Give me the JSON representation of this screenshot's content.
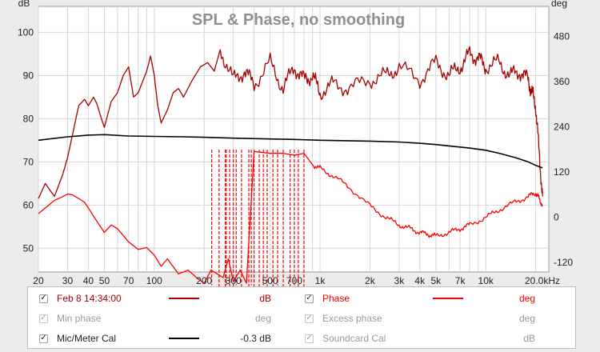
{
  "chart_data": {
    "type": "line",
    "title": "SPL & Phase, no smoothing",
    "xscale": "log",
    "xlim": [
      20,
      24000
    ],
    "x_ticks": [
      {
        "value": 20,
        "label": "20"
      },
      {
        "value": 30,
        "label": "30"
      },
      {
        "value": 40,
        "label": "40"
      },
      {
        "value": 50,
        "label": "50"
      },
      {
        "value": 70,
        "label": "70"
      },
      {
        "value": 100,
        "label": "100"
      },
      {
        "value": 200,
        "label": "200"
      },
      {
        "value": 300,
        "label": "300"
      },
      {
        "value": 500,
        "label": "500"
      },
      {
        "value": 700,
        "label": "700"
      },
      {
        "value": 1000,
        "label": "1k"
      },
      {
        "value": 2000,
        "label": "2k"
      },
      {
        "value": 3000,
        "label": "3k"
      },
      {
        "value": 4000,
        "label": "4k"
      },
      {
        "value": 5000,
        "label": "5k"
      },
      {
        "value": 7000,
        "label": "7k"
      },
      {
        "value": 10000,
        "label": "10k"
      },
      {
        "value": 20000,
        "label": "20.0kHz"
      }
    ],
    "y_left": {
      "label": "dB",
      "min": 44.5,
      "max": 106,
      "ticks": [
        50,
        60,
        70,
        80,
        90,
        100
      ]
    },
    "y_right": {
      "label": "deg",
      "min": -145,
      "max": 560,
      "ticks": [
        -120,
        0,
        120,
        240,
        360,
        480
      ]
    },
    "series": [
      {
        "name": "SPL (Feb 8 14:34:00)",
        "axis": "left",
        "color": "#a50000",
        "x": [
          20,
          22,
          25,
          28,
          30,
          32,
          35,
          38,
          40,
          43,
          45,
          48,
          50,
          55,
          60,
          65,
          70,
          75,
          80,
          90,
          95,
          100,
          105,
          110,
          120,
          130,
          140,
          150,
          170,
          190,
          210,
          230,
          250,
          300,
          350,
          400,
          500,
          600,
          700,
          800,
          900,
          1000,
          1200,
          1500,
          2000,
          2500,
          3000,
          4000,
          5000,
          6000,
          7000,
          8000,
          9000,
          10000,
          12000,
          14000,
          16000,
          18000,
          19000,
          20000,
          21000,
          22000
        ],
        "values": [
          61.5,
          65,
          62,
          67,
          71,
          76,
          83,
          84.5,
          83,
          85,
          83.5,
          80,
          78,
          84,
          86,
          90,
          92,
          85,
          86,
          91,
          94.5,
          90,
          83,
          79,
          82,
          86,
          87,
          85,
          89,
          92,
          93,
          91,
          96,
          89,
          91,
          88,
          93,
          87,
          92,
          89,
          90,
          86,
          88,
          87,
          89,
          90,
          92,
          89,
          93,
          90,
          92,
          95,
          94,
          92,
          93,
          90,
          91,
          89,
          86,
          83,
          72,
          62
        ]
      },
      {
        "name": "Phase",
        "axis": "right",
        "color": "#ff0000",
        "x": [
          20,
          22,
          25,
          28,
          30,
          32,
          35,
          38,
          40,
          45,
          50,
          55,
          60,
          70,
          80,
          90,
          100,
          110,
          120,
          140,
          160,
          180,
          200,
          220,
          240,
          260,
          280,
          300,
          330,
          360,
          400,
          500,
          600,
          700,
          800,
          900,
          1000,
          1200,
          1500,
          2000,
          2500,
          3000,
          3500,
          4000,
          4500,
          5000,
          6000,
          7000,
          8000,
          10000,
          12000,
          15000,
          18000,
          20000,
          21000,
          22000
        ],
        "values": [
          10,
          25,
          45,
          55,
          62,
          60,
          50,
          40,
          25,
          -10,
          -40,
          -20,
          -30,
          -65,
          -85,
          -80,
          -100,
          -130,
          -110,
          -150,
          -140,
          -160,
          -175,
          -140,
          -150,
          -160,
          -110,
          -170,
          -140,
          -175,
          175,
          170,
          170,
          165,
          170,
          140,
          130,
          110,
          80,
          30,
          0,
          -20,
          -30,
          -40,
          -45,
          -50,
          -40,
          -30,
          -20,
          0,
          20,
          40,
          55,
          65,
          50,
          30
        ]
      },
      {
        "name": "Mic/Meter Cal",
        "axis": "left",
        "color": "#000000",
        "x": [
          20,
          30,
          40,
          50,
          70,
          100,
          150,
          200,
          300,
          500,
          700,
          1000,
          2000,
          3000,
          4000,
          5000,
          6000,
          8000,
          10000,
          12000,
          15000,
          18000,
          20000,
          22000
        ],
        "values": [
          75,
          75.8,
          76.2,
          76.3,
          76,
          75.9,
          75.8,
          75.7,
          75.5,
          75.3,
          75.2,
          75,
          74.8,
          74.6,
          74.3,
          74.0,
          73.7,
          73.2,
          72.7,
          72.0,
          71.0,
          70.0,
          69.2,
          68.6
        ]
      }
    ],
    "phase_wraps_hz": [
      222,
      246,
      268,
      272,
      285,
      300,
      312,
      336,
      372,
      385,
      400,
      430,
      455,
      480,
      520,
      555,
      600,
      660,
      700,
      740,
      800
    ]
  },
  "legend": {
    "rows": [
      [
        {
          "label": "Feb 8 14:34:00",
          "checked": true,
          "color": "#a50000",
          "unit": "dB",
          "enabled": true
        },
        {
          "label": "Phase",
          "checked": true,
          "color": "#ff0000",
          "unit": "deg",
          "enabled": true
        }
      ],
      [
        {
          "label": "Min phase",
          "checked": true,
          "color": "",
          "unit": "deg",
          "enabled": false
        },
        {
          "label": "Excess phase",
          "checked": true,
          "color": "",
          "unit": "deg",
          "enabled": false
        }
      ],
      [
        {
          "label": "Mic/Meter Cal",
          "checked": true,
          "color": "#000000",
          "unit": "-0.3 dB",
          "enabled": true
        },
        {
          "label": "Soundcard Cal",
          "checked": true,
          "color": "",
          "unit": "dB",
          "enabled": false
        }
      ]
    ],
    "check_glyph": "✓"
  }
}
